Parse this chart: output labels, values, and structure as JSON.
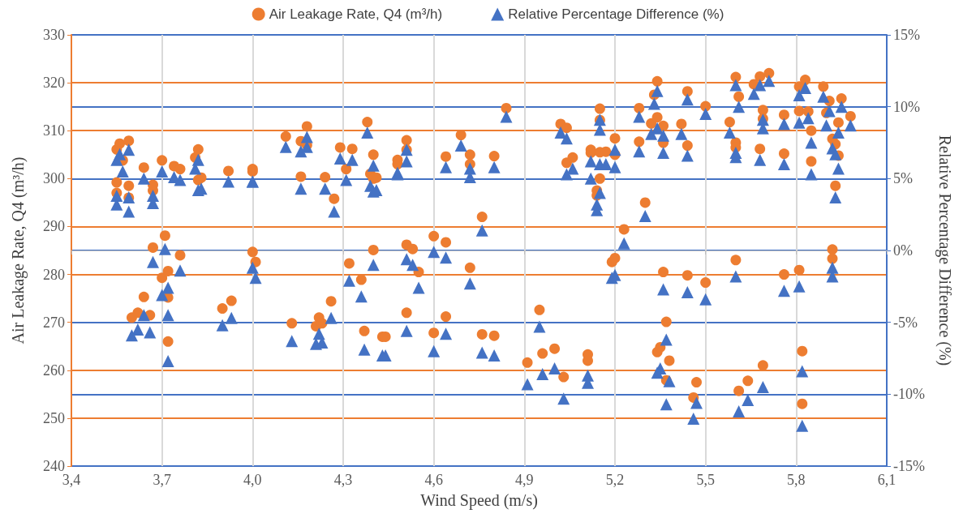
{
  "chart_data": {
    "type": "scatter",
    "xlabel": "Wind Speed (m/s)",
    "ylabel": "Air Leakage Rate, Q4 (m³/h)",
    "y2label": "Relative Percentage Difference (%)",
    "xlim": [
      3.4,
      6.1
    ],
    "xticks": [
      {
        "value": 3.4,
        "label": "3,4"
      },
      {
        "value": 3.7,
        "label": "3,7"
      },
      {
        "value": 4.0,
        "label": "4,0"
      },
      {
        "value": 4.3,
        "label": "4,3"
      },
      {
        "value": 4.6,
        "label": "4,6"
      },
      {
        "value": 4.9,
        "label": "4,9"
      },
      {
        "value": 5.2,
        "label": "5,2"
      },
      {
        "value": 5.5,
        "label": "5,5"
      },
      {
        "value": 5.8,
        "label": "5,8"
      },
      {
        "value": 6.1,
        "label": "6,1"
      }
    ],
    "ylim": [
      240,
      330
    ],
    "yticks": [
      240,
      250,
      260,
      270,
      280,
      290,
      300,
      310,
      320,
      330
    ],
    "y2lim": [
      -15,
      15
    ],
    "y2ticks": [
      {
        "value": -15,
        "label": "-15%"
      },
      {
        "value": -10,
        "label": "-10%"
      },
      {
        "value": -5,
        "label": "-5%"
      },
      {
        "value": 0,
        "label": "0%"
      },
      {
        "value": 5,
        "label": "5%"
      },
      {
        "value": 10,
        "label": "10%"
      },
      {
        "value": 15,
        "label": "15%"
      }
    ],
    "grid": true,
    "legend": "top",
    "x": [
      3.55,
      3.55,
      3.55,
      3.56,
      3.57,
      3.59,
      3.59,
      3.59,
      3.6,
      3.62,
      3.64,
      3.64,
      3.66,
      3.67,
      3.67,
      3.67,
      3.7,
      3.7,
      3.71,
      3.72,
      3.72,
      3.72,
      3.74,
      3.76,
      3.76,
      3.81,
      3.82,
      3.82,
      3.83,
      3.9,
      3.92,
      3.93,
      4.0,
      4.0,
      4.0,
      4.01,
      4.11,
      4.13,
      4.16,
      4.16,
      4.18,
      4.18,
      4.21,
      4.22,
      4.23,
      4.24,
      4.26,
      4.27,
      4.29,
      4.31,
      4.32,
      4.33,
      4.36,
      4.37,
      4.38,
      4.39,
      4.4,
      4.4,
      4.4,
      4.41,
      4.43,
      4.44,
      4.48,
      4.48,
      4.51,
      4.51,
      4.51,
      4.51,
      4.53,
      4.55,
      4.6,
      4.6,
      4.64,
      4.64,
      4.64,
      4.69,
      4.72,
      4.72,
      4.72,
      4.76,
      4.76,
      4.8,
      4.8,
      4.84,
      4.91,
      4.95,
      4.96,
      5.0,
      5.02,
      5.03,
      5.04,
      5.04,
      5.06,
      5.11,
      5.11,
      5.12,
      5.12,
      5.14,
      5.14,
      5.15,
      5.15,
      5.15,
      5.15,
      5.17,
      5.19,
      5.2,
      5.2,
      5.2,
      5.23,
      5.28,
      5.28,
      5.3,
      5.32,
      5.33,
      5.34,
      5.34,
      5.34,
      5.35,
      5.36,
      5.36,
      5.36,
      5.37,
      5.37,
      5.38,
      5.42,
      5.44,
      5.44,
      5.44,
      5.46,
      5.47,
      5.5,
      5.5,
      5.58,
      5.6,
      5.6,
      5.6,
      5.6,
      5.61,
      5.61,
      5.64,
      5.66,
      5.68,
      5.68,
      5.69,
      5.69,
      5.69,
      5.71,
      5.76,
      5.76,
      5.76,
      5.81,
      5.81,
      5.81,
      5.82,
      5.82,
      5.83,
      5.84,
      5.85,
      5.85,
      5.89,
      5.9,
      5.91,
      5.92,
      5.92,
      5.92,
      5.93,
      5.93,
      5.94,
      5.94,
      5.95,
      5.98
    ],
    "series": [
      {
        "name": "Air Leakage Rate, Q4 (m³/h)",
        "color": "#ed7d31",
        "marker": "circle",
        "values": [
          306.1,
          299.2,
          297,
          307.3,
          303.8,
          307.9,
          298.5,
          296,
          271,
          272,
          275.3,
          302.3,
          271.5,
          285.6,
          298.7,
          297.5,
          303.8,
          279.3,
          288.1,
          275.2,
          266,
          280.7,
          302.6,
          302,
          284,
          304.4,
          306.1,
          299.7,
          300.2,
          272.9,
          301.6,
          274.5,
          302,
          301.5,
          284.7,
          282.6,
          308.8,
          269.8,
          307.8,
          300.4,
          310.9,
          307,
          269.2,
          271,
          269.8,
          300.3,
          274.4,
          295.8,
          306.5,
          302,
          282.3,
          306.2,
          278.9,
          268.2,
          311.8,
          301,
          305,
          300,
          285.1,
          300.2,
          267,
          267,
          303.9,
          303,
          308,
          306,
          286.2,
          272,
          285.3,
          280.5,
          288,
          267.8,
          304.6,
          286.7,
          271.2,
          309.1,
          305,
          303,
          281.4,
          292,
          267.5,
          304.7,
          267.2,
          314.7,
          261.6,
          272.6,
          263.5,
          264.5,
          311.4,
          258.6,
          310.6,
          303.3,
          304.4,
          263.3,
          262,
          306,
          305.4,
          296.5,
          297.5,
          314.6,
          312.2,
          305.5,
          300,
          305.6,
          282.6,
          283.4,
          308.4,
          305,
          289.4,
          314.7,
          307.7,
          295,
          311.5,
          317.5,
          320.3,
          312.8,
          263.8,
          264.8,
          311,
          307.5,
          280.5,
          270.1,
          257.9,
          262,
          311.4,
          318.2,
          306.9,
          279.8,
          254.3,
          257.5,
          315.1,
          278.3,
          311.8,
          321.2,
          307.5,
          306.5,
          283,
          317.1,
          255.7,
          257.8,
          319.7,
          321.3,
          306.2,
          314.3,
          312.5,
          261,
          322,
          313.3,
          305.2,
          280,
          319.2,
          314.1,
          280.9,
          264,
          253,
          320.6,
          314,
          310,
          303.6,
          319.2,
          313.7,
          316.2,
          308.3,
          285.2,
          283.3,
          307.2,
          298.5,
          311.7,
          304.8,
          316.7,
          313
        ]
      },
      {
        "name": "Relative Percentage Difference (%)",
        "color": "#4472c4",
        "marker": "triangle",
        "axis": "y2",
        "values": [
          6.3,
          3.8,
          3.2,
          6.7,
          5.5,
          7.0,
          3.7,
          2.7,
          -5.9,
          -5.5,
          -4.5,
          5.0,
          -5.7,
          -0.8,
          3.8,
          3.3,
          5.5,
          -3.1,
          0.1,
          -4.5,
          -7.7,
          -2.6,
          5.1,
          4.9,
          -1.4,
          5.7,
          6.3,
          4.2,
          4.3,
          -5.2,
          4.8,
          -4.7,
          4.8,
          4.8,
          -1.2,
          -1.9,
          7.2,
          -6.3,
          6.9,
          4.3,
          7.9,
          7.2,
          -6.5,
          -5.8,
          -6.4,
          4.3,
          -4.7,
          2.7,
          6.4,
          4.9,
          -2.1,
          6.3,
          -3.2,
          -6.9,
          8.2,
          4.5,
          5.9,
          4.1,
          -1.0,
          4.2,
          -7.3,
          -7.3,
          5.4,
          5.3,
          7.0,
          6.2,
          -0.6,
          -5.6,
          -1.0,
          -2.6,
          -0.1,
          -7.0,
          5.8,
          -0.5,
          -5.8,
          7.3,
          5.7,
          5.1,
          -2.3,
          1.4,
          -7.1,
          5.8,
          -7.3,
          9.3,
          -9.3,
          -5.3,
          -8.6,
          -8.2,
          8.2,
          -10.3,
          7.8,
          5.3,
          5.7,
          -8.7,
          -9.2,
          6.2,
          5.0,
          2.8,
          3.2,
          9.1,
          8.4,
          6.0,
          4.0,
          6.0,
          -1.9,
          -1.7,
          7.0,
          5.8,
          0.5,
          9.3,
          6.9,
          2.4,
          8.1,
          10.2,
          11.1,
          8.5,
          -8.5,
          -8.2,
          8.0,
          6.8,
          -2.7,
          -6.2,
          -10.7,
          -9.1,
          8.1,
          10.5,
          6.6,
          -2.9,
          -11.7,
          -10.6,
          9.5,
          -3.4,
          8.2,
          11.5,
          6.8,
          6.5,
          -1.8,
          10.0,
          -11.2,
          -10.4,
          10.9,
          11.5,
          6.3,
          9.1,
          8.5,
          -9.5,
          11.8,
          8.8,
          6.0,
          -2.8,
          10.8,
          8.9,
          -2.5,
          -8.4,
          -12.2,
          11.3,
          9.2,
          7.5,
          5.3,
          10.7,
          8.7,
          9.7,
          7.1,
          -1.2,
          -1.8,
          6.7,
          3.7,
          8.2,
          5.7,
          10.0,
          8.7
        ]
      }
    ]
  }
}
